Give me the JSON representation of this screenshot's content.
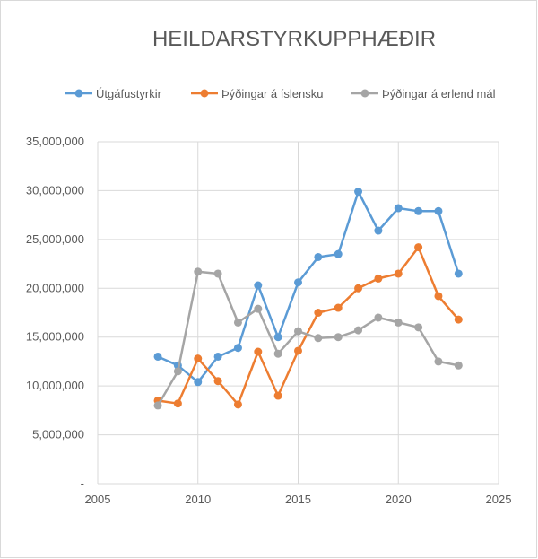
{
  "chart_data": {
    "type": "line",
    "title": "HEILDARSTYRKUPPHÆÐIR",
    "xlabel": "",
    "ylabel": "",
    "xlim": [
      2005,
      2025
    ],
    "ylim": [
      0,
      35000000
    ],
    "x_ticks": [
      2005,
      2010,
      2015,
      2020,
      2025
    ],
    "x_tick_labels": [
      "2005",
      "2010",
      "2015",
      "2020",
      "2025"
    ],
    "y_ticks": [
      0,
      5000000,
      10000000,
      15000000,
      20000000,
      25000000,
      30000000,
      35000000
    ],
    "y_tick_labels": [
      "-",
      "5,000,000",
      "10,000,000",
      "15,000,000",
      "20,000,000",
      "25,000,000",
      "30,000,000",
      "35,000,000"
    ],
    "grid": true,
    "legend_position": "top",
    "x": [
      2008,
      2009,
      2010,
      2011,
      2012,
      2013,
      2014,
      2015,
      2016,
      2017,
      2018,
      2019,
      2020,
      2021,
      2022,
      2023
    ],
    "series": [
      {
        "name": "Útgáfustyrkir",
        "color": "#5b9bd5",
        "values": [
          13000000,
          12100000,
          10400000,
          13000000,
          13900000,
          20300000,
          15000000,
          20600000,
          23200000,
          23500000,
          29900000,
          25900000,
          28200000,
          27900000,
          27900000,
          21500000
        ]
      },
      {
        "name": "Þýðingar á íslensku",
        "color": "#ed7d31",
        "values": [
          8500000,
          8200000,
          12800000,
          10500000,
          8100000,
          13500000,
          9000000,
          13600000,
          17500000,
          18000000,
          20000000,
          21000000,
          21500000,
          24200000,
          19200000,
          16800000
        ]
      },
      {
        "name": "Þýðingar á erlend mál",
        "color": "#a5a5a5",
        "values": [
          8000000,
          11500000,
          21700000,
          21500000,
          16500000,
          17900000,
          13300000,
          15600000,
          14900000,
          15000000,
          15700000,
          17000000,
          16500000,
          16000000,
          12500000,
          12100000
        ]
      }
    ]
  }
}
